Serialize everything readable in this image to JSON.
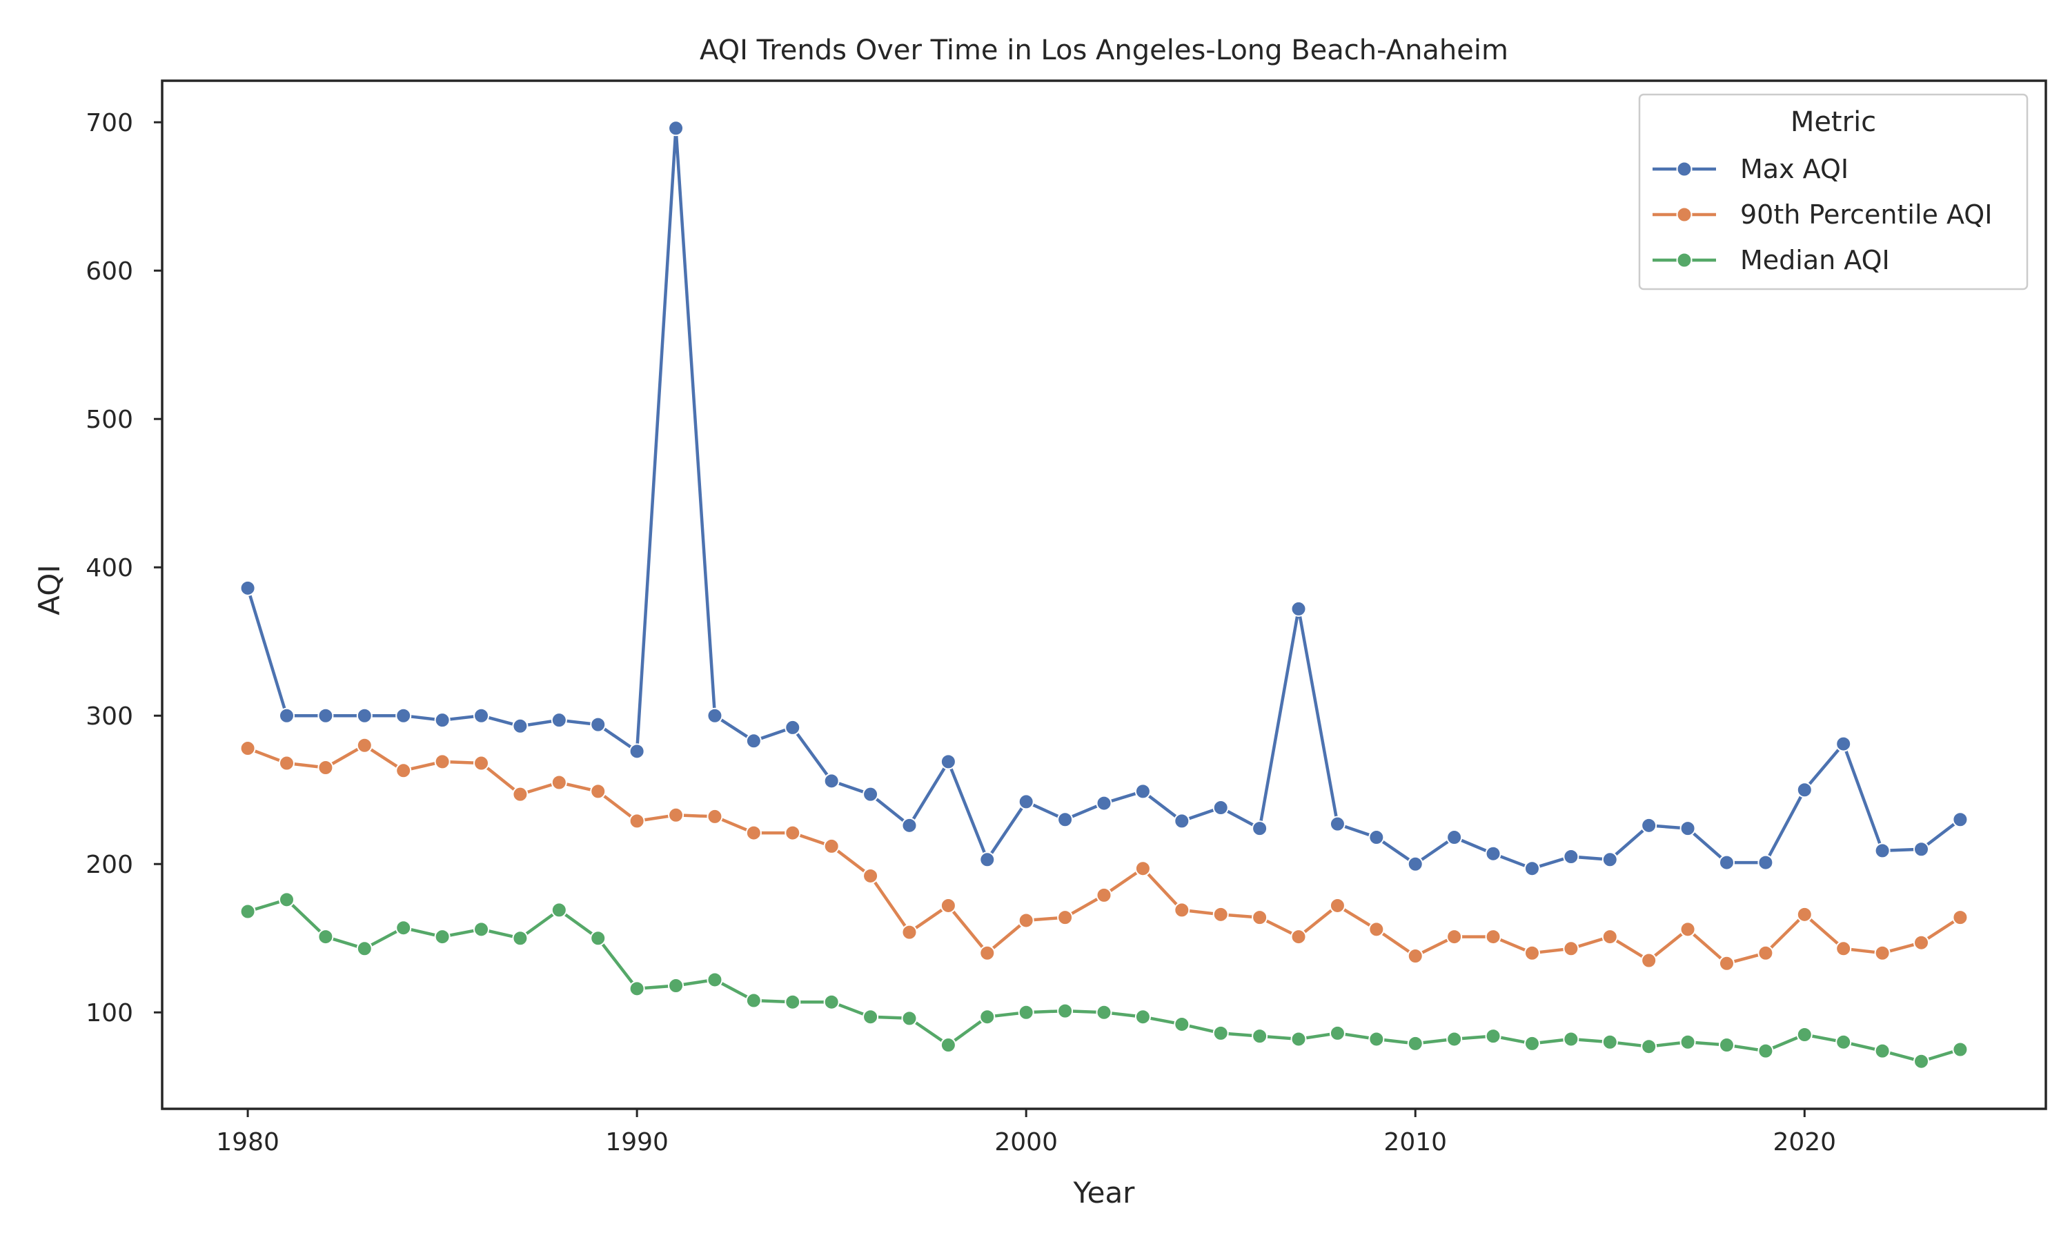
{
  "chart_data": {
    "type": "line",
    "title": "AQI Trends Over Time in Los Angeles-Long Beach-Anaheim",
    "xlabel": "Year",
    "ylabel": "AQI",
    "xlim": [
      1977.8,
      2026.2
    ],
    "ylim": [
      35,
      728
    ],
    "xticks": [
      1980,
      1990,
      2000,
      2010,
      2020
    ],
    "yticks": [
      100,
      200,
      300,
      400,
      500,
      600,
      700
    ],
    "grid": false,
    "legend": {
      "title": "Metric",
      "placement": "top-right"
    },
    "x": [
      1980,
      1981,
      1982,
      1983,
      1984,
      1985,
      1986,
      1987,
      1988,
      1989,
      1990,
      1991,
      1992,
      1993,
      1994,
      1995,
      1996,
      1997,
      1998,
      1999,
      2000,
      2001,
      2002,
      2003,
      2004,
      2005,
      2006,
      2007,
      2008,
      2009,
      2010,
      2011,
      2012,
      2013,
      2014,
      2015,
      2016,
      2017,
      2018,
      2019,
      2020,
      2021,
      2022,
      2023,
      2024
    ],
    "series": [
      {
        "name": "Max AQI",
        "color": "#4c72b0",
        "values": [
          386,
          300,
          300,
          300,
          300,
          297,
          300,
          293,
          297,
          294,
          276,
          696,
          300,
          283,
          292,
          256,
          247,
          226,
          269,
          203,
          242,
          230,
          241,
          249,
          229,
          238,
          224,
          372,
          227,
          218,
          200,
          218,
          207,
          197,
          205,
          203,
          226,
          224,
          201,
          201,
          250,
          281,
          209,
          210,
          230
        ]
      },
      {
        "name": "90th Percentile AQI",
        "color": "#dd8452",
        "values": [
          278,
          268,
          265,
          280,
          263,
          269,
          268,
          247,
          255,
          249,
          229,
          233,
          232,
          221,
          221,
          212,
          192,
          154,
          172,
          140,
          162,
          164,
          179,
          197,
          169,
          166,
          164,
          151,
          172,
          156,
          138,
          151,
          151,
          140,
          143,
          151,
          135,
          156,
          133,
          140,
          166,
          143,
          140,
          147,
          164
        ]
      },
      {
        "name": "Median AQI",
        "color": "#55a868",
        "values": [
          168,
          176,
          151,
          143,
          157,
          151,
          156,
          150,
          169,
          150,
          116,
          118,
          122,
          108,
          107,
          107,
          97,
          96,
          78,
          97,
          100,
          101,
          100,
          97,
          92,
          86,
          84,
          82,
          86,
          82,
          79,
          82,
          84,
          79,
          82,
          80,
          77,
          80,
          78,
          74,
          85,
          80,
          74,
          67,
          75
        ]
      }
    ]
  }
}
